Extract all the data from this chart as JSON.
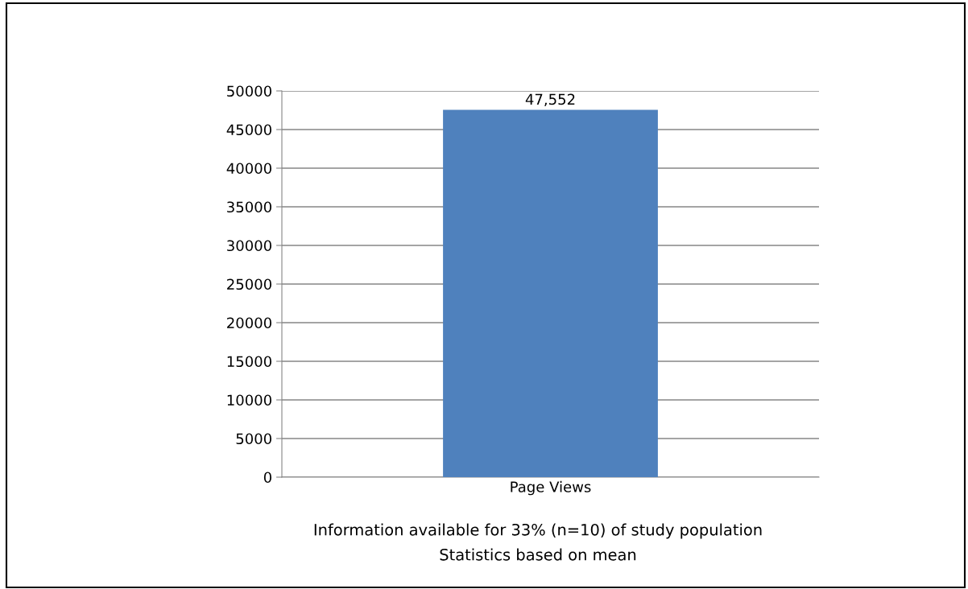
{
  "chart_data": {
    "type": "bar",
    "categories": [
      "Page Views"
    ],
    "values": [
      47552
    ],
    "value_labels": [
      "47,552"
    ],
    "color": "#4f81bd",
    "ylim": [
      0,
      50000
    ],
    "yticks": [
      0,
      5000,
      10000,
      15000,
      20000,
      25000,
      30000,
      35000,
      40000,
      45000,
      50000
    ],
    "grid": "y",
    "legend": false,
    "annotations": [
      "Information available for 33% (n=10) of study population",
      "Statistics based on mean"
    ]
  }
}
